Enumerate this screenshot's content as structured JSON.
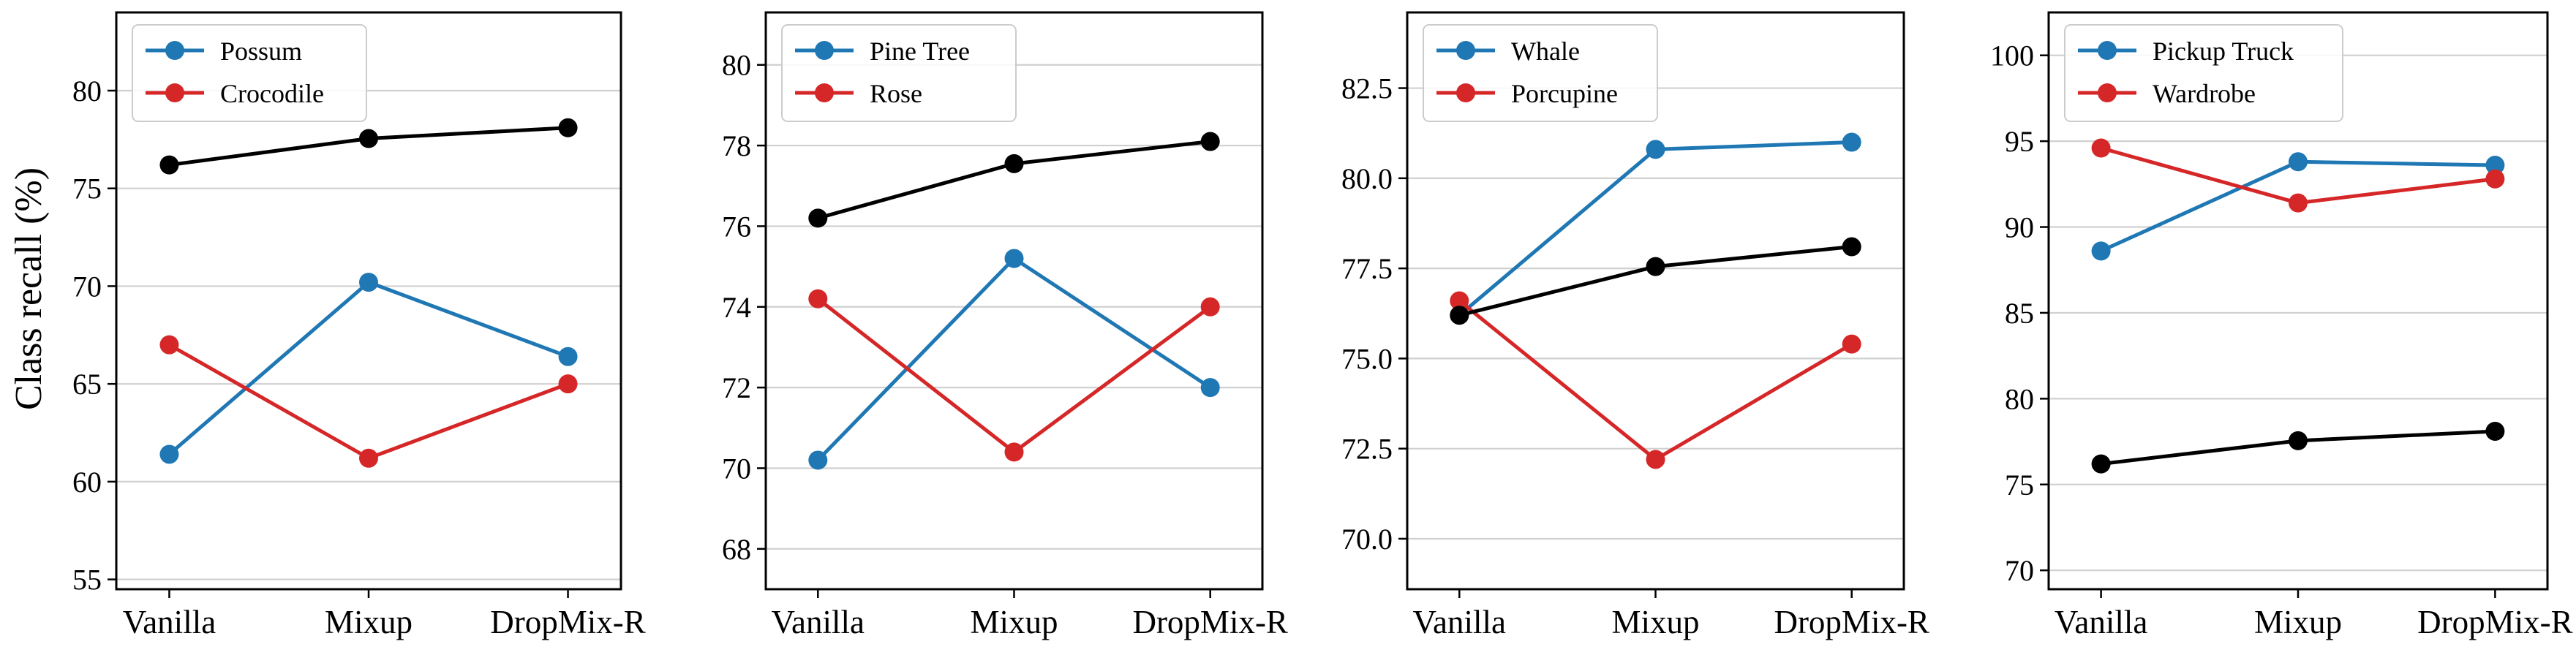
{
  "figure": {
    "ylabel": "Class recall (%)"
  },
  "colors": {
    "blue": "#1f77b4",
    "red": "#d62728",
    "black": "#000000"
  },
  "chart_data": [
    {
      "type": "line",
      "categories": [
        "Vanilla",
        "Mixup",
        "DropMix-R"
      ],
      "ylabel": "Class recall (%)",
      "ylim": [
        54.5,
        84
      ],
      "yticks": [
        55,
        60,
        65,
        70,
        75,
        80
      ],
      "grid": "horizontal",
      "legend": "top-left",
      "series": [
        {
          "name": "Possum",
          "color": "#1f77b4",
          "values": [
            61.4,
            70.2,
            66.4
          ]
        },
        {
          "name": "Crocodile",
          "color": "#d62728",
          "values": [
            67.0,
            61.2,
            65.0
          ]
        },
        {
          "name": "",
          "color": "#000000",
          "values": [
            76.2,
            77.55,
            78.1
          ]
        }
      ]
    },
    {
      "type": "line",
      "categories": [
        "Vanilla",
        "Mixup",
        "DropMix-R"
      ],
      "ylim": [
        67,
        81.3
      ],
      "yticks": [
        68,
        70,
        72,
        74,
        76,
        78,
        80
      ],
      "grid": "horizontal",
      "legend": "top-left",
      "series": [
        {
          "name": "Pine Tree",
          "color": "#1f77b4",
          "values": [
            70.2,
            75.2,
            72.0
          ]
        },
        {
          "name": "Rose",
          "color": "#d62728",
          "values": [
            74.2,
            70.4,
            74.0
          ]
        },
        {
          "name": "",
          "color": "#000000",
          "values": [
            76.2,
            77.55,
            78.1
          ]
        }
      ]
    },
    {
      "type": "line",
      "categories": [
        "Vanilla",
        "Mixup",
        "DropMix-R"
      ],
      "ylim": [
        68.6,
        84.6
      ],
      "yticks": [
        70.0,
        72.5,
        75.0,
        77.5,
        80.0,
        82.5
      ],
      "ytick_labels": [
        "70.0",
        "72.5",
        "75.0",
        "77.5",
        "80.0",
        "82.5"
      ],
      "grid": "horizontal",
      "legend": "top-left",
      "series": [
        {
          "name": "Whale",
          "color": "#1f77b4",
          "values": [
            76.2,
            80.8,
            81.0
          ]
        },
        {
          "name": "Porcupine",
          "color": "#d62728",
          "values": [
            76.6,
            72.2,
            75.4
          ]
        },
        {
          "name": "",
          "color": "#000000",
          "values": [
            76.2,
            77.55,
            78.1
          ]
        }
      ]
    },
    {
      "type": "line",
      "categories": [
        "Vanilla",
        "Mixup",
        "DropMix-R"
      ],
      "ylim": [
        68.9,
        102.5
      ],
      "yticks": [
        70,
        75,
        80,
        85,
        90,
        95,
        100
      ],
      "grid": "horizontal",
      "legend": "top-left",
      "series": [
        {
          "name": "Pickup Truck",
          "color": "#1f77b4",
          "values": [
            88.6,
            93.8,
            93.6
          ]
        },
        {
          "name": "Wardrobe",
          "color": "#d62728",
          "values": [
            94.6,
            91.4,
            92.8
          ]
        },
        {
          "name": "",
          "color": "#000000",
          "values": [
            76.2,
            77.55,
            78.1
          ]
        }
      ]
    }
  ]
}
